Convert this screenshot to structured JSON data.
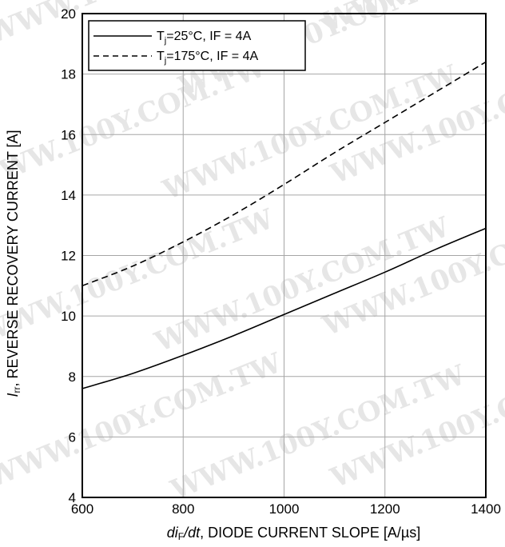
{
  "watermark": "WWW.100Y.COM.TW",
  "chart_data": {
    "type": "line",
    "xlabel_italic": "di",
    "xlabel_sub": "F",
    "xlabel_italic2": "/dt",
    "xlabel_rest": ", DIODE CURRENT SLOPE [A/µs]",
    "ylabel_italic": "I",
    "ylabel_sub": "rr",
    "ylabel_rest": ", REVERSE RECOVERY CURRENT [A]",
    "xlim": [
      600,
      1400
    ],
    "ylim": [
      4,
      20
    ],
    "xticks": [
      600,
      800,
      1000,
      1200,
      1400
    ],
    "yticks": [
      4,
      6,
      8,
      10,
      12,
      14,
      16,
      18,
      20
    ],
    "grid": true,
    "legend_position": "top-left",
    "series": [
      {
        "name_prefix": "T",
        "name_sub": "j",
        "name_rest": "=25°C, IF = 4A",
        "style": "solid",
        "x": [
          600,
          700,
          800,
          900,
          1000,
          1100,
          1200,
          1300,
          1400
        ],
        "y": [
          7.6,
          8.1,
          8.7,
          9.35,
          10.05,
          10.75,
          11.45,
          12.2,
          12.9
        ]
      },
      {
        "name_prefix": "T",
        "name_sub": "j",
        "name_rest": "=175°C, IF = 4A",
        "style": "dashed",
        "x": [
          600,
          700,
          800,
          900,
          1000,
          1100,
          1200,
          1300,
          1400
        ],
        "y": [
          11.0,
          11.65,
          12.45,
          13.35,
          14.35,
          15.4,
          16.4,
          17.4,
          18.4
        ]
      }
    ]
  }
}
